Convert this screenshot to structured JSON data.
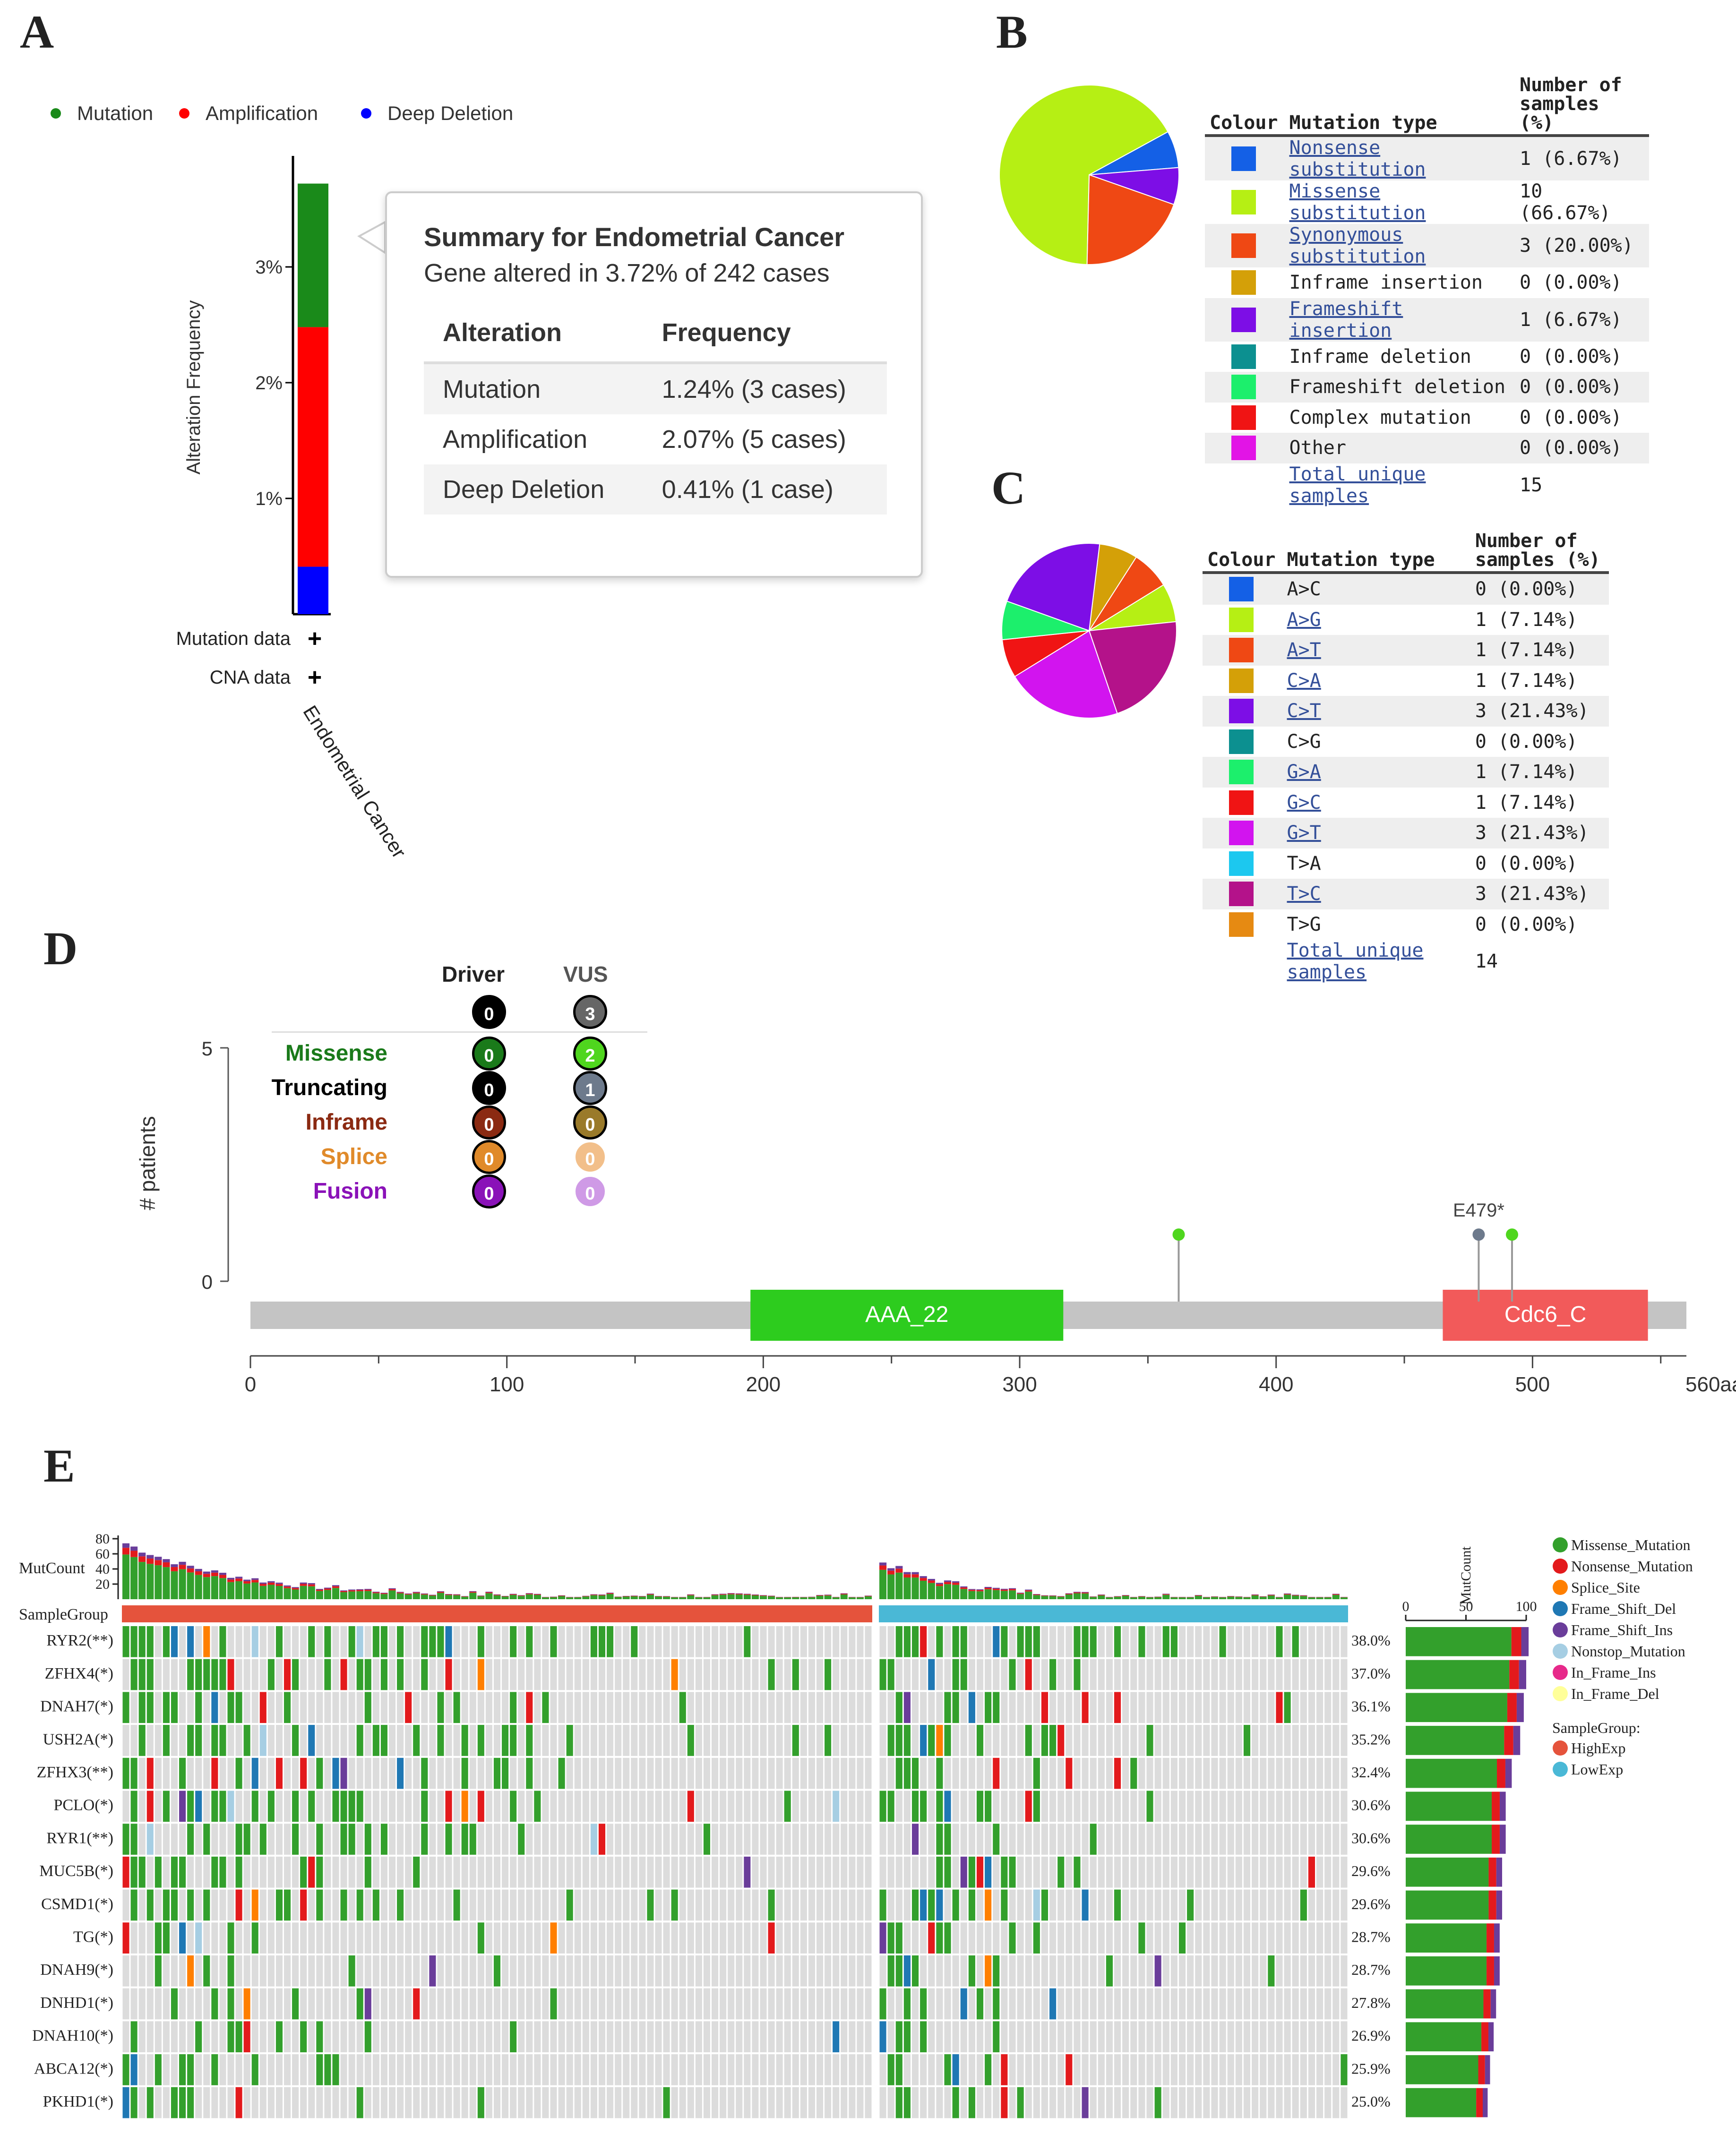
{
  "panels": {
    "A": "A",
    "B": "B",
    "C": "C",
    "D": "D",
    "E": "E"
  },
  "panelA": {
    "legend": [
      {
        "label": "Mutation",
        "color": "#1a8a1a"
      },
      {
        "label": "Amplification",
        "color": "#ff0000"
      },
      {
        "label": "Deep Deletion",
        "color": "#0000ff"
      }
    ],
    "ylabel": "Alteration Frequency",
    "yticks": [
      "1%",
      "2%",
      "3%"
    ],
    "row_labels": [
      "Mutation data",
      "CNA data"
    ],
    "row_marks": [
      "+",
      "+"
    ],
    "xlabel": "Endometrial Cancer",
    "tooltip": {
      "title": "Summary for Endometrial Cancer",
      "subtitle": "Gene altered in 3.72% of 242 cases",
      "headers": [
        "Alteration",
        "Frequency"
      ],
      "rows": [
        {
          "alteration": "Mutation",
          "frequency": "1.24% (3 cases)"
        },
        {
          "alteration": "Amplification",
          "frequency": "2.07% (5 cases)"
        },
        {
          "alteration": "Deep Deletion",
          "frequency": "0.41% (1 case)"
        }
      ]
    }
  },
  "panelB": {
    "headers": {
      "colour": "Colour",
      "type": "Mutation type",
      "count": "Number of samples (%)"
    },
    "rows": [
      {
        "color": "#1460e6",
        "type": "Nonsense substitution",
        "link": true,
        "count": "1 (6.67%)",
        "value": 1
      },
      {
        "color": "#b6ef14",
        "type": "Missense substitution",
        "link": true,
        "count": "10 (66.67%)",
        "value": 10
      },
      {
        "color": "#ef4814",
        "type": "Synonymous substitution",
        "link": true,
        "count": "3 (20.00%)",
        "value": 3
      },
      {
        "color": "#d4a008",
        "type": "Inframe insertion",
        "link": false,
        "count": "0 (0.00%)",
        "value": 0
      },
      {
        "color": "#7d0ee6",
        "type": "Frameshift insertion",
        "link": true,
        "count": "1 (6.67%)",
        "value": 1
      },
      {
        "color": "#0c9090",
        "type": "Inframe deletion",
        "link": false,
        "count": "0 (0.00%)",
        "value": 0
      },
      {
        "color": "#1cef6c",
        "type": "Frameshift deletion",
        "link": false,
        "count": "0 (0.00%)",
        "value": 0
      },
      {
        "color": "#f01414",
        "type": "Complex mutation",
        "link": false,
        "count": "0 (0.00%)",
        "value": 0
      },
      {
        "color": "#e214e6",
        "type": "Other",
        "link": false,
        "count": "0 (0.00%)",
        "value": 0
      }
    ],
    "total_label": "Total unique samples",
    "total": "15"
  },
  "panelC": {
    "headers": {
      "colour": "Colour",
      "type": "Mutation type",
      "count": "Number of samples (%)"
    },
    "rows": [
      {
        "color": "#1460e6",
        "type": "A>C",
        "link": false,
        "count": "0 (0.00%)",
        "value": 0
      },
      {
        "color": "#b6ef14",
        "type": "A>G",
        "link": true,
        "count": "1 (7.14%)",
        "value": 1
      },
      {
        "color": "#ef4814",
        "type": "A>T",
        "link": true,
        "count": "1 (7.14%)",
        "value": 1
      },
      {
        "color": "#d4a008",
        "type": "C>A",
        "link": true,
        "count": "1 (7.14%)",
        "value": 1
      },
      {
        "color": "#7d0ee6",
        "type": "C>T",
        "link": true,
        "count": "3 (21.43%)",
        "value": 3
      },
      {
        "color": "#0c9090",
        "type": "C>G",
        "link": false,
        "count": "0 (0.00%)",
        "value": 0
      },
      {
        "color": "#1cef6c",
        "type": "G>A",
        "link": true,
        "count": "1 (7.14%)",
        "value": 1
      },
      {
        "color": "#f01414",
        "type": "G>C",
        "link": true,
        "count": "1 (7.14%)",
        "value": 1
      },
      {
        "color": "#d214ef",
        "type": "G>T",
        "link": true,
        "count": "3 (21.43%)",
        "value": 3
      },
      {
        "color": "#1cc8ef",
        "type": "T>A",
        "link": false,
        "count": "0 (0.00%)",
        "value": 0
      },
      {
        "color": "#b4128a",
        "type": "T>C",
        "link": true,
        "count": "3 (21.43%)",
        "value": 3
      },
      {
        "color": "#e68a12",
        "type": "T>G",
        "link": false,
        "count": "0 (0.00%)",
        "value": 0
      }
    ],
    "total_label": "Total unique samples",
    "total": "14"
  },
  "panelD": {
    "col_headers": [
      "Driver",
      "VUS"
    ],
    "totals": [
      "0",
      "3"
    ],
    "rows": [
      {
        "label": "Missense",
        "color": "#1a7a1a",
        "driver": "0",
        "vus": "2",
        "dcolor": "#1a7a1a",
        "vcolor": "#4fd61e"
      },
      {
        "label": "Truncating",
        "color": "#000000",
        "driver": "0",
        "vus": "1",
        "dcolor": "#000000",
        "vcolor": "#6d7a8c"
      },
      {
        "label": "Inframe",
        "color": "#8b2a12",
        "driver": "0",
        "vus": "0",
        "dcolor": "#8b2a12",
        "vcolor": "#9a7a2a"
      },
      {
        "label": "Splice",
        "color": "#e08a2a",
        "driver": "0",
        "vus": "0",
        "dcolor": "#e08a2a",
        "vcolor": "#f2bf8a"
      },
      {
        "label": "Fusion",
        "color": "#8a12b8",
        "driver": "0",
        "vus": "0",
        "dcolor": "#8a12b8",
        "vcolor": "#cf9ae6"
      }
    ],
    "ylabel": "# patients",
    "yticks": [
      "0",
      "5"
    ],
    "xticks": [
      "0",
      "100",
      "200",
      "300",
      "400",
      "500"
    ],
    "xend_label": "560aa",
    "domains": [
      {
        "name": "AAA_22",
        "start": 195,
        "end": 317,
        "color": "#2dcc1e"
      },
      {
        "name": "Cdc6_C",
        "start": 465,
        "end": 545,
        "color": "#f25a5a"
      }
    ],
    "lollipops": [
      {
        "pos": 362,
        "color": "#4fd61e",
        "label": ""
      },
      {
        "pos": 479,
        "color": "#6d7a8c",
        "label": "E479*"
      },
      {
        "pos": 492,
        "color": "#4fd61e",
        "label": ""
      }
    ]
  },
  "panelE": {
    "mutcount_label": "MutCount",
    "mutcount_ticks": [
      "20",
      "40",
      "60",
      "80"
    ],
    "samplegroup_label": "SampleGroup",
    "genes": [
      "RYR2(**)",
      "ZFHX4(*)",
      "DNAH7(*)",
      "USH2A(*)",
      "ZFHX3(**)",
      "PCLO(*)",
      "RYR1(**)",
      "MUC5B(*)",
      "CSMD1(*)",
      "TG(*)",
      "DNAH9(*)",
      "DNHD1(*)",
      "DNAH10(*)",
      "ABCA12(*)",
      "PKHD1(*)"
    ],
    "percents": [
      "38.0%",
      "37.0%",
      "36.1%",
      "35.2%",
      "32.4%",
      "30.6%",
      "30.6%",
      "29.6%",
      "29.6%",
      "28.7%",
      "28.7%",
      "27.8%",
      "26.9%",
      "25.9%",
      "25.0%"
    ],
    "gene_totals": [
      102,
      100,
      98,
      95,
      88,
      83,
      83,
      80,
      80,
      78,
      78,
      75,
      73,
      70,
      68
    ],
    "right_axis_label": "MutCount",
    "right_ticks": [
      "0",
      "50",
      "100"
    ],
    "legend_mut": [
      {
        "label": "Missense_Mutation",
        "color": "#33a02c"
      },
      {
        "label": "Nonsense_Mutation",
        "color": "#e31a1c"
      },
      {
        "label": "Splice_Site",
        "color": "#ff7f00"
      },
      {
        "label": "Frame_Shift_Del",
        "color": "#1f78b4"
      },
      {
        "label": "Frame_Shift_Ins",
        "color": "#6a3d9a"
      },
      {
        "label": "Nonstop_Mutation",
        "color": "#a6cee3"
      },
      {
        "label": "In_Frame_Ins",
        "color": "#e7298a"
      },
      {
        "label": "In_Frame_Del",
        "color": "#ffff99"
      }
    ],
    "legend_group_title": "SampleGroup:",
    "legend_group": [
      {
        "label": "HighExp",
        "color": "#e5533c"
      },
      {
        "label": "LowExp",
        "color": "#4ab8d6"
      }
    ]
  }
}
